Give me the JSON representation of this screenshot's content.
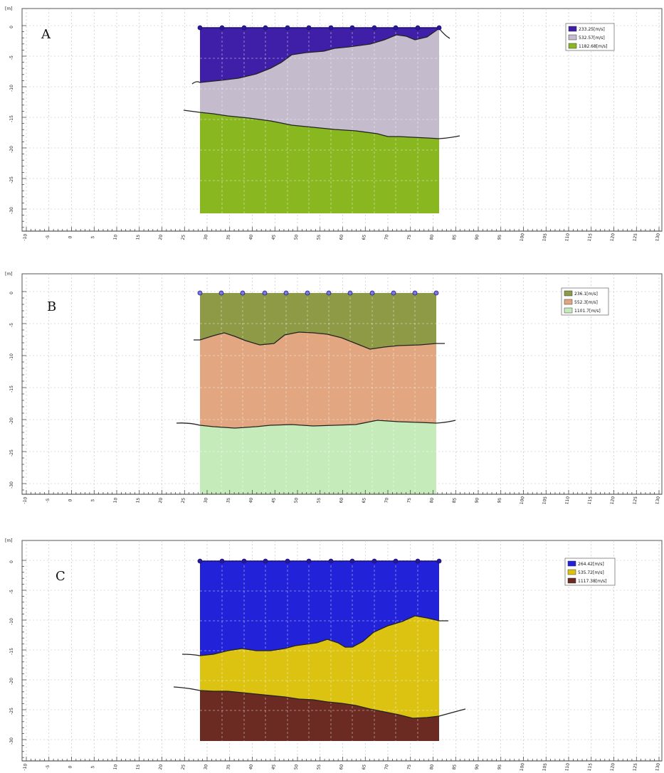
{
  "panels": [
    {
      "id": "A",
      "letter": "A",
      "unit_label": "[m]",
      "y_ticks": [
        "0",
        "-5",
        "-10",
        "-15",
        "-20",
        "-25",
        "-30"
      ],
      "x_ticks": [
        "-10",
        "-5",
        "0",
        "5",
        "10",
        "15",
        "20",
        "25",
        "30",
        "35",
        "40",
        "45",
        "50",
        "55",
        "60",
        "65",
        "70",
        "75",
        "80",
        "85",
        "90",
        "95",
        "100",
        "105",
        "110",
        "115",
        "120",
        "125",
        "130"
      ],
      "legend": [
        {
          "label": "233.25[m/s]",
          "color": "#3f1fa8"
        },
        {
          "label": "532.57[m/s]",
          "color": "#c4bccc"
        },
        {
          "label": "1182.68[m/s]",
          "color": "#88b71f"
        }
      ]
    },
    {
      "id": "B",
      "letter": "B",
      "unit_label": "[m]",
      "y_ticks": [
        "0",
        "-5",
        "-10",
        "-15",
        "-20",
        "-25",
        "-30"
      ],
      "x_ticks": [
        "-10",
        "-5",
        "0",
        "5",
        "10",
        "15",
        "20",
        "25",
        "30",
        "35",
        "40",
        "45",
        "50",
        "55",
        "60",
        "65",
        "70",
        "75",
        "80",
        "85",
        "90",
        "95",
        "100",
        "105",
        "110",
        "115",
        "120",
        "125",
        "130"
      ],
      "legend": [
        {
          "label": "236.1[m/s]",
          "color": "#8e9a45"
        },
        {
          "label": "552.3[m/s]",
          "color": "#e2a780"
        },
        {
          "label": "1101.7[m/s]",
          "color": "#c6ebbb"
        }
      ]
    },
    {
      "id": "C",
      "letter": "C",
      "unit_label": "[m]",
      "y_ticks": [
        "0",
        "-5",
        "-10",
        "-15",
        "-20",
        "-25",
        "-30"
      ],
      "x_ticks": [
        "-10",
        "-5",
        "0",
        "5",
        "10",
        "15",
        "20",
        "25",
        "30",
        "35",
        "40",
        "45",
        "50",
        "55",
        "60",
        "65",
        "70",
        "75",
        "80",
        "85",
        "90",
        "95",
        "100",
        "105",
        "110",
        "115",
        "120",
        "125",
        "130"
      ],
      "legend": [
        {
          "label": "264.42[m/s]",
          "color": "#2222d8"
        },
        {
          "label": "535.72[m/s]",
          "color": "#dcc312"
        },
        {
          "label": "1117.38[m/s]",
          "color": "#6b2a22"
        }
      ]
    }
  ]
}
